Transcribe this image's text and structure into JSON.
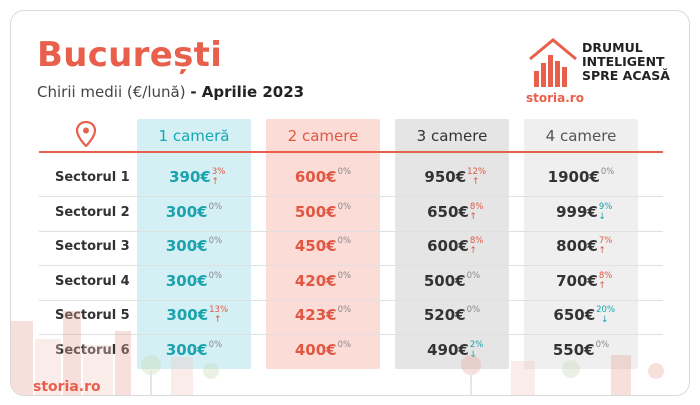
{
  "header": {
    "title": "București",
    "subtitle": "Chirii medii (€/lună)",
    "date": "- Aprilie 2023"
  },
  "logo": {
    "tagline_1": "DRUMUL",
    "tagline_2": "INTELIGENT",
    "tagline_3": "SPRE ACASĂ",
    "brand": "storia.ro"
  },
  "columns": [
    "1 cameră",
    "2 camere",
    "3 camere",
    "4 camere"
  ],
  "rows": [
    {
      "label": "Sectorul 1",
      "cells": [
        {
          "v": "390€",
          "p": "3%",
          "d": "up"
        },
        {
          "v": "600€",
          "p": "0%",
          "d": "zero"
        },
        {
          "v": "950€",
          "p": "12%",
          "d": "up"
        },
        {
          "v": "1900€",
          "p": "0%",
          "d": "zero"
        }
      ]
    },
    {
      "label": "Sectorul 2",
      "cells": [
        {
          "v": "300€",
          "p": "0%",
          "d": "zero"
        },
        {
          "v": "500€",
          "p": "0%",
          "d": "zero"
        },
        {
          "v": "650€",
          "p": "8%",
          "d": "up"
        },
        {
          "v": "999€",
          "p": "9%",
          "d": "down"
        }
      ]
    },
    {
      "label": "Sectorul 3",
      "cells": [
        {
          "v": "300€",
          "p": "0%",
          "d": "zero"
        },
        {
          "v": "450€",
          "p": "0%",
          "d": "zero"
        },
        {
          "v": "600€",
          "p": "8%",
          "d": "up"
        },
        {
          "v": "800€",
          "p": "7%",
          "d": "up"
        }
      ]
    },
    {
      "label": "Sectorul 4",
      "cells": [
        {
          "v": "300€",
          "p": "0%",
          "d": "zero"
        },
        {
          "v": "420€",
          "p": "0%",
          "d": "zero"
        },
        {
          "v": "500€",
          "p": "0%",
          "d": "zero"
        },
        {
          "v": "700€",
          "p": "8%",
          "d": "up"
        }
      ]
    },
    {
      "label": "Sectorul 5",
      "cells": [
        {
          "v": "300€",
          "p": "13%",
          "d": "up"
        },
        {
          "v": "423€",
          "p": "0%",
          "d": "zero"
        },
        {
          "v": "520€",
          "p": "0%",
          "d": "zero"
        },
        {
          "v": "650€",
          "p": "20%",
          "d": "down"
        }
      ]
    },
    {
      "label": "Sectorul 6",
      "cells": [
        {
          "v": "300€",
          "p": "0%",
          "d": "zero"
        },
        {
          "v": "400€",
          "p": "0%",
          "d": "zero"
        },
        {
          "v": "490€",
          "p": "2%",
          "d": "down"
        },
        {
          "v": "550€",
          "p": "0%",
          "d": "zero"
        }
      ]
    }
  ],
  "footer": {
    "brand": "storia.ro"
  },
  "colors": {
    "accent": "#e8604c",
    "teal": "#1aa3ad"
  }
}
